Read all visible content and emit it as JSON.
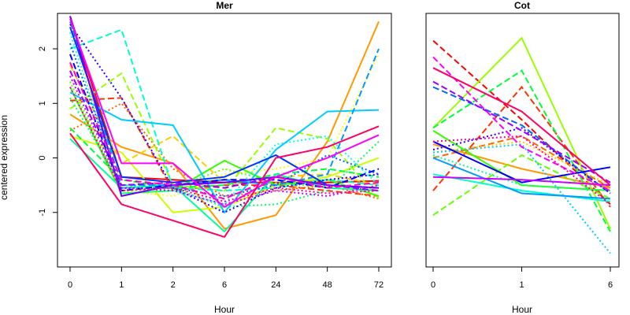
{
  "chart_data": [
    {
      "type": "line",
      "title": "Mer",
      "xlabel": "Hour",
      "ylabel": "centered expression",
      "categories": [
        "0",
        "1",
        "2",
        "6",
        "24",
        "48",
        "72"
      ],
      "yticks": [
        -1,
        0,
        1,
        2
      ],
      "ylim": [
        -2.0,
        2.65
      ],
      "grid": false,
      "series": [
        {
          "color": "#FF0000",
          "style": "solid",
          "values": [
            2.6,
            -0.35,
            -0.4,
            -0.45,
            -0.45,
            -0.45,
            -0.42
          ]
        },
        {
          "color": "#FF3300",
          "style": "dashed",
          "values": [
            1.05,
            1.1,
            -0.6,
            -0.5,
            -0.5,
            -0.6,
            -0.7
          ]
        },
        {
          "color": "#FF6600",
          "style": "dotted",
          "values": [
            0.5,
            1.0,
            -0.2,
            -0.7,
            -0.6,
            -0.5,
            -0.75
          ]
        },
        {
          "color": "#FF9900",
          "style": "solid",
          "values": [
            0.8,
            0.2,
            -0.1,
            -1.3,
            -1.05,
            0.3,
            2.5
          ]
        },
        {
          "color": "#FFCC00",
          "style": "dashed",
          "values": [
            1.7,
            -0.1,
            0.4,
            -0.45,
            -0.35,
            -0.3,
            -0.5
          ]
        },
        {
          "color": "#FFFF00",
          "style": "dotted",
          "values": [
            2.4,
            -0.6,
            -0.7,
            -0.3,
            -0.2,
            0.0,
            1.9
          ]
        },
        {
          "color": "#CCFF00",
          "style": "solid",
          "values": [
            0.4,
            0.1,
            -1.0,
            -0.9,
            -0.5,
            -0.35,
            0.0
          ]
        },
        {
          "color": "#99FF00",
          "style": "dashed",
          "values": [
            0.9,
            1.55,
            -0.5,
            -0.6,
            0.55,
            0.35,
            -0.75
          ]
        },
        {
          "color": "#66FF00",
          "style": "dotted",
          "values": [
            1.4,
            -0.6,
            -0.55,
            -0.2,
            -0.45,
            -0.55,
            -0.6
          ]
        },
        {
          "color": "#33FF00",
          "style": "solid",
          "values": [
            1.3,
            -0.65,
            -0.6,
            -0.05,
            -0.5,
            -0.4,
            -0.7
          ]
        },
        {
          "color": "#00FF33",
          "style": "dashed",
          "values": [
            0.55,
            -0.4,
            -0.55,
            -0.5,
            -0.3,
            -0.2,
            -0.35
          ]
        },
        {
          "color": "#00FF66",
          "style": "dotted",
          "values": [
            1.1,
            -0.5,
            -0.55,
            -0.9,
            -0.85,
            -0.6,
            0.3
          ]
        },
        {
          "color": "#00FF99",
          "style": "solid",
          "values": [
            0.35,
            -0.55,
            -0.5,
            -1.35,
            -0.3,
            -0.55,
            -0.6
          ]
        },
        {
          "color": "#00FFCC",
          "style": "dashed",
          "values": [
            2.0,
            2.35,
            -0.55,
            -0.6,
            -0.55,
            -0.4,
            -0.5
          ]
        },
        {
          "color": "#00FFFF",
          "style": "dotted",
          "values": [
            2.3,
            -0.65,
            -0.6,
            -0.85,
            0.25,
            0.4,
            -0.5
          ]
        },
        {
          "color": "#00CCFF",
          "style": "solid",
          "values": [
            1.2,
            0.7,
            0.6,
            -1.0,
            0.15,
            0.85,
            0.88
          ]
        },
        {
          "color": "#0099FF",
          "style": "dashed",
          "values": [
            2.5,
            -0.5,
            -0.5,
            -0.4,
            -0.5,
            -0.3,
            2.0
          ]
        },
        {
          "color": "#0066FF",
          "style": "dotted",
          "values": [
            2.1,
            -0.55,
            -0.55,
            -0.7,
            -0.5,
            0.05,
            -0.3
          ]
        },
        {
          "color": "#0033FF",
          "style": "solid",
          "values": [
            2.4,
            -0.35,
            -0.45,
            -0.35,
            0.05,
            -0.5,
            -0.55
          ]
        },
        {
          "color": "#0000FF",
          "style": "dashed",
          "values": [
            1.9,
            -0.6,
            -0.5,
            -0.4,
            -0.4,
            -0.55,
            -0.2
          ]
        },
        {
          "color": "#3300FF",
          "style": "dotted",
          "values": [
            2.45,
            1.1,
            -0.55,
            -1.0,
            -0.55,
            -0.4,
            -0.3
          ]
        },
        {
          "color": "#6600FF",
          "style": "solid",
          "values": [
            2.6,
            -0.7,
            -0.5,
            -0.45,
            -0.35,
            -0.5,
            -0.55
          ]
        },
        {
          "color": "#9900FF",
          "style": "dashed",
          "values": [
            1.6,
            -0.5,
            -0.45,
            -0.55,
            -0.35,
            -0.5,
            -0.6
          ]
        },
        {
          "color": "#CC00FF",
          "style": "dotted",
          "values": [
            1.5,
            -0.55,
            -0.6,
            -0.85,
            -0.6,
            -0.7,
            -0.5
          ]
        },
        {
          "color": "#FF00FF",
          "style": "solid",
          "values": [
            2.55,
            -0.1,
            -0.1,
            -0.9,
            -0.35,
            0.0,
            0.42
          ]
        },
        {
          "color": "#FF00CC",
          "style": "dashed",
          "values": [
            1.75,
            -0.4,
            -0.5,
            -0.75,
            -0.35,
            -0.55,
            -0.45
          ]
        },
        {
          "color": "#FF0099",
          "style": "dotted",
          "values": [
            1.3,
            -0.6,
            -0.55,
            -0.8,
            -0.55,
            -0.65,
            -0.6
          ]
        },
        {
          "color": "#FF0066",
          "style": "solid",
          "values": [
            0.45,
            -0.85,
            -1.15,
            -1.45,
            0.0,
            0.2,
            0.58
          ]
        }
      ]
    },
    {
      "type": "line",
      "title": "Cot",
      "xlabel": "Hour",
      "categories": [
        "0",
        "1",
        "6"
      ],
      "yticks": [],
      "ylim": [
        -2.0,
        2.65
      ],
      "grid": false,
      "legend": {
        "placement": "left",
        "colors": [
          "#FF0000",
          "#FF3300",
          "#FF6600",
          "#FF9900",
          "#FFCC00",
          "#FFFF00",
          "#CCFF00",
          "#99FF00",
          "#33FF00",
          "#00FF33",
          "#00FF66",
          "#00FF99",
          "#00FFCC",
          "#00FFFF"
        ],
        "style": "dashed"
      },
      "series": [
        {
          "color": "#FF0000",
          "style": "dashed",
          "values": [
            2.15,
            0.7,
            -0.85
          ]
        },
        {
          "color": "#FF3300",
          "style": "dashed",
          "values": [
            -0.6,
            1.3,
            -0.9
          ]
        },
        {
          "color": "#FF6600",
          "style": "dashed",
          "values": [
            0.0,
            0.4,
            -0.55
          ]
        },
        {
          "color": "#FF9900",
          "style": "solid",
          "values": [
            0.25,
            -0.2,
            -0.55
          ]
        },
        {
          "color": "#FFCC00",
          "style": "dotted",
          "values": [
            0.1,
            0.3,
            -0.5
          ]
        },
        {
          "color": "#99FF00",
          "style": "solid",
          "values": [
            0.55,
            2.2,
            -1.3
          ]
        },
        {
          "color": "#66FF00",
          "style": "dashed",
          "values": [
            -1.05,
            0.05,
            -0.75
          ]
        },
        {
          "color": "#33FF00",
          "style": "solid",
          "values": [
            0.5,
            -0.5,
            -0.6
          ]
        },
        {
          "color": "#00FF33",
          "style": "dashed",
          "values": [
            0.55,
            1.6,
            -1.35
          ]
        },
        {
          "color": "#00FF99",
          "style": "dotted",
          "values": [
            0.05,
            -0.5,
            -0.6
          ]
        },
        {
          "color": "#00FFCC",
          "style": "solid",
          "values": [
            -0.3,
            -0.6,
            -0.8
          ]
        },
        {
          "color": "#00CCFF",
          "style": "dotted",
          "values": [
            0.1,
            0.25,
            -1.75
          ]
        },
        {
          "color": "#0099FF",
          "style": "solid",
          "values": [
            0.0,
            -0.65,
            -0.75
          ]
        },
        {
          "color": "#0066FF",
          "style": "dashed",
          "values": [
            1.3,
            0.6,
            -0.65
          ]
        },
        {
          "color": "#0000FF",
          "style": "solid",
          "values": [
            0.3,
            -0.45,
            -0.17
          ]
        },
        {
          "color": "#3300FF",
          "style": "dotted",
          "values": [
            0.15,
            0.55,
            -0.65
          ]
        },
        {
          "color": "#9900FF",
          "style": "dashed",
          "values": [
            1.4,
            0.5,
            -0.45
          ]
        },
        {
          "color": "#CC00FF",
          "style": "solid",
          "values": [
            -0.35,
            -0.4,
            -0.5
          ]
        },
        {
          "color": "#FF00FF",
          "style": "dashed",
          "values": [
            1.85,
            0.2,
            -0.6
          ]
        },
        {
          "color": "#FF0099",
          "style": "dotted",
          "values": [
            0.3,
            0.4,
            -0.85
          ]
        },
        {
          "color": "#FF0066",
          "style": "solid",
          "values": [
            1.65,
            0.85,
            -0.5
          ]
        }
      ]
    }
  ]
}
